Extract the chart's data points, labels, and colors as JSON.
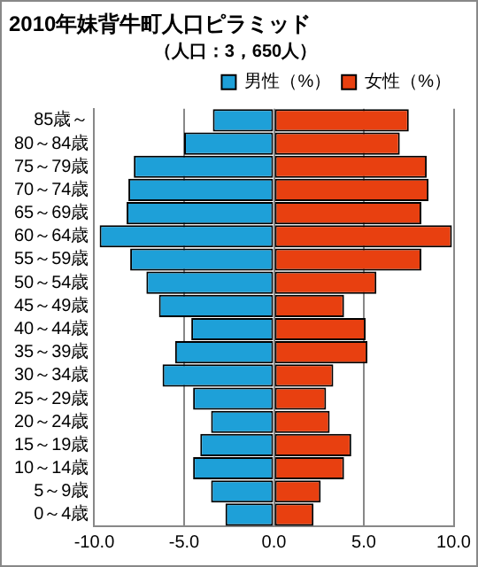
{
  "chart_data": {
    "type": "bar",
    "orientation": "horizontal",
    "stacked": true,
    "title": "2010年妹背牛町人口ピラミッド",
    "subtitle": "（人口：3，650人）",
    "categories": [
      "85歳～",
      "80～84歳",
      "75～79歳",
      "70～74歳",
      "65～69歳",
      "60～64歳",
      "55～59歳",
      "50～54歳",
      "45～49歳",
      "40～44歳",
      "35～39歳",
      "30～34歳",
      "25～29歳",
      "20～24歳",
      "15～19歳",
      "10～14歳",
      "5～9歳",
      "0～4歳"
    ],
    "series": [
      {
        "name": "男性（%）",
        "color": "#1ea0d8",
        "values": [
          -3.4,
          -5.0,
          -7.8,
          -8.1,
          -8.2,
          -9.7,
          -8.0,
          -7.1,
          -6.4,
          -4.6,
          -5.5,
          -6.2,
          -4.5,
          -3.5,
          -4.1,
          -4.5,
          -3.5,
          -2.7
        ]
      },
      {
        "name": "女性（%）",
        "color": "#e84010",
        "values": [
          7.5,
          7.0,
          8.5,
          8.6,
          8.2,
          9.9,
          8.2,
          5.7,
          3.9,
          5.1,
          5.2,
          3.3,
          2.9,
          3.1,
          4.3,
          3.9,
          2.6,
          2.2
        ]
      }
    ],
    "xlim": [
      -10,
      10
    ],
    "xticks": [
      {
        "value": -10,
        "label": "-10.0"
      },
      {
        "value": -5,
        "label": "-5.0"
      },
      {
        "value": 0,
        "label": "0.0"
      },
      {
        "value": 5,
        "label": "5.0"
      },
      {
        "value": 10,
        "label": "10.0"
      }
    ],
    "grid": "x",
    "legend": "top right"
  }
}
